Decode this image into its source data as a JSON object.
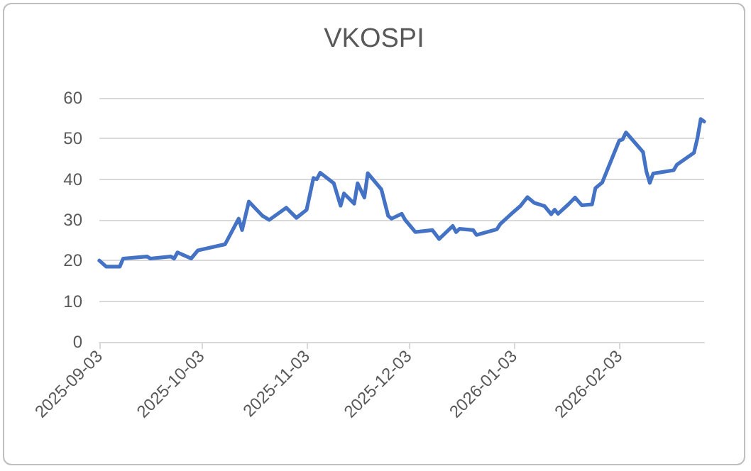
{
  "chart_data": {
    "type": "line",
    "title": "VKOSPI",
    "x": [
      "2025-09-03",
      "2025-09-05",
      "2025-09-09",
      "2025-09-10",
      "2025-09-17",
      "2025-09-18",
      "2025-09-24",
      "2025-09-25",
      "2025-09-26",
      "2025-09-30",
      "2025-10-02",
      "2025-10-10",
      "2025-10-14",
      "2025-10-15",
      "2025-10-17",
      "2025-10-21",
      "2025-10-23",
      "2025-10-28",
      "2025-10-31",
      "2025-11-03",
      "2025-11-05",
      "2025-11-06",
      "2025-11-07",
      "2025-11-11",
      "2025-11-13",
      "2025-11-14",
      "2025-11-17",
      "2025-11-18",
      "2025-11-20",
      "2025-11-21",
      "2025-11-25",
      "2025-11-27",
      "2025-11-28",
      "2025-12-01",
      "2025-12-02",
      "2025-12-05",
      "2025-12-10",
      "2025-12-12",
      "2025-12-16",
      "2025-12-17",
      "2025-12-18",
      "2025-12-22",
      "2025-12-23",
      "2025-12-29",
      "2025-12-30",
      "2026-01-02",
      "2026-01-05",
      "2026-01-07",
      "2026-01-09",
      "2026-01-12",
      "2026-01-14",
      "2026-01-15",
      "2026-01-16",
      "2026-01-19",
      "2026-01-21",
      "2026-01-23",
      "2026-01-26",
      "2026-01-27",
      "2026-01-29",
      "2026-02-03",
      "2026-02-04",
      "2026-02-05",
      "2026-02-10",
      "2026-02-11",
      "2026-02-12",
      "2026-02-13",
      "2026-02-19",
      "2026-02-20",
      "2026-02-25",
      "2026-02-26",
      "2026-02-27",
      "2026-02-28"
    ],
    "series": [
      {
        "color": "#4472c4",
        "values": [
          20.0,
          18.5,
          18.5,
          20.5,
          21,
          20.5,
          21,
          20.5,
          22,
          20.5,
          22.5,
          24,
          30.3,
          27.5,
          34.5,
          31,
          30,
          33,
          30.5,
          32.5,
          40.3,
          40,
          41.6,
          39,
          33.5,
          36.5,
          34,
          39,
          35.5,
          41.5,
          37.5,
          31,
          30.3,
          31.5,
          30,
          27,
          27.5,
          25.3,
          28.5,
          27,
          27.8,
          27.5,
          26.3,
          27.7,
          29,
          31.3,
          33.5,
          35.6,
          34.2,
          33.4,
          31.4,
          32.5,
          31.5,
          33.8,
          35.5,
          33.6,
          33.8,
          37.8,
          39.2,
          49.5,
          49.8,
          51.5,
          46.7,
          41.9,
          39.1,
          41.4,
          42.2,
          43.6,
          46.5,
          50,
          54.8,
          54.2
        ]
      }
    ],
    "xlim": [
      "2025-09-03",
      "2026-02-28"
    ],
    "xticks": [
      "2025-09-03",
      "2025-10-03",
      "2025-11-03",
      "2025-12-03",
      "2026-01-03",
      "2026-02-03"
    ],
    "ylim": [
      0,
      60
    ],
    "yticks": [
      0,
      10,
      20,
      30,
      40,
      50,
      60
    ],
    "grid": "y",
    "marker": "none",
    "line_style": "solid"
  }
}
